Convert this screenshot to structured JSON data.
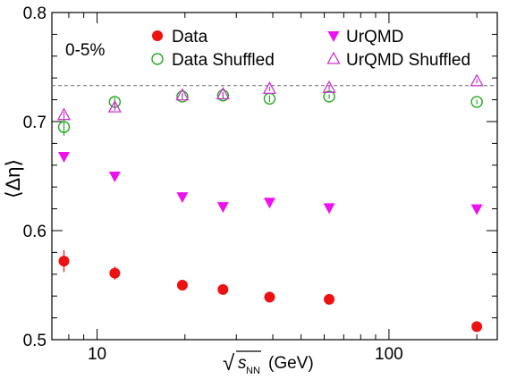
{
  "chart_data": {
    "type": "scatter",
    "xscale": "log",
    "xlim": [
      7,
      235
    ],
    "ylim": [
      0.5,
      0.8
    ],
    "xlabel": "√s_NN (GeV)",
    "xlabel_parts": {
      "sqrt": "√",
      "s": "s",
      "sub": "NN",
      "unit": "(GeV)"
    },
    "ylabel": "⟨Δη⟩",
    "xticks_major": [
      {
        "value": 10,
        "label": "10"
      },
      {
        "value": 100,
        "label": "100"
      }
    ],
    "xticks_minor": [
      7,
      8,
      9,
      20,
      30,
      40,
      50,
      60,
      70,
      80,
      90,
      200
    ],
    "yticks_major": [
      {
        "value": 0.5,
        "label": "0.5"
      },
      {
        "value": 0.6,
        "label": "0.6"
      },
      {
        "value": 0.7,
        "label": "0.7"
      },
      {
        "value": 0.8,
        "label": "0.8"
      }
    ],
    "yticks_minor": [
      0.52,
      0.54,
      0.56,
      0.58,
      0.62,
      0.64,
      0.66,
      0.68,
      0.72,
      0.74,
      0.76,
      0.78
    ],
    "annotation": "0-5%",
    "reference_line": {
      "y": 0.733,
      "style": "dashed",
      "color": "#666666"
    },
    "grid": false,
    "legend_position": "top",
    "series": [
      {
        "name": "Data",
        "marker": "circle-filled",
        "color": "#ee1111",
        "points": [
          {
            "x": 7.7,
            "y": 0.572,
            "err": 0.01
          },
          {
            "x": 11.5,
            "y": 0.561,
            "err": 0.006
          },
          {
            "x": 19.6,
            "y": 0.55,
            "err": 0.003
          },
          {
            "x": 27,
            "y": 0.546,
            "err": 0.003
          },
          {
            "x": 39,
            "y": 0.539,
            "err": 0.005
          },
          {
            "x": 62.4,
            "y": 0.537,
            "err": 0.003
          },
          {
            "x": 200,
            "y": 0.512,
            "err": 0.002
          }
        ]
      },
      {
        "name": "Data Shuffled",
        "marker": "circle-open",
        "color": "#22aa22",
        "points": [
          {
            "x": 7.7,
            "y": 0.695,
            "err": 0.008
          },
          {
            "x": 11.5,
            "y": 0.718,
            "err": 0.004
          },
          {
            "x": 19.6,
            "y": 0.723,
            "err": 0.003
          },
          {
            "x": 27,
            "y": 0.724,
            "err": 0.003
          },
          {
            "x": 39,
            "y": 0.721,
            "err": 0.003
          },
          {
            "x": 62.4,
            "y": 0.723,
            "err": 0.002
          },
          {
            "x": 200,
            "y": 0.718,
            "err": 0.002
          }
        ]
      },
      {
        "name": "UrQMD",
        "marker": "triangle-down-filled",
        "color": "#ee11ee",
        "points": [
          {
            "x": 7.7,
            "y": 0.668,
            "err": 0.004
          },
          {
            "x": 11.5,
            "y": 0.65,
            "err": 0.004
          },
          {
            "x": 19.6,
            "y": 0.631,
            "err": 0.003
          },
          {
            "x": 27,
            "y": 0.622,
            "err": 0.003
          },
          {
            "x": 39,
            "y": 0.626,
            "err": 0.003
          },
          {
            "x": 62.4,
            "y": 0.621,
            "err": 0.003
          },
          {
            "x": 200,
            "y": 0.62,
            "err": 0.004
          }
        ]
      },
      {
        "name": "UrQMD Shuffled",
        "marker": "triangle-up-open",
        "color": "#cc33cc",
        "points": [
          {
            "x": 7.7,
            "y": 0.706,
            "err": 0.003
          },
          {
            "x": 11.5,
            "y": 0.713,
            "err": 0.003
          },
          {
            "x": 19.6,
            "y": 0.724,
            "err": 0.002
          },
          {
            "x": 27,
            "y": 0.725,
            "err": 0.002
          },
          {
            "x": 39,
            "y": 0.73,
            "err": 0.002
          },
          {
            "x": 62.4,
            "y": 0.731,
            "err": 0.002
          },
          {
            "x": 200,
            "y": 0.737,
            "err": 0.002
          }
        ]
      }
    ]
  }
}
